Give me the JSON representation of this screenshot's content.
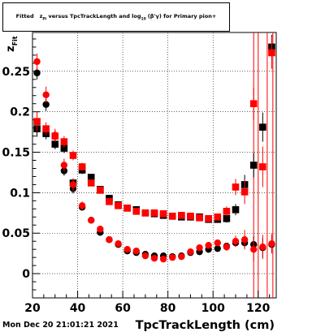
{
  "title": {
    "prefix": "Fitted",
    "var": "z",
    "var_sub": "Pi",
    "middle": " versus TpcTrackLength and log",
    "log_sub": "10",
    "suffix": "(β'γ) for Primary pion+"
  },
  "footer": {
    "timestamp": "Mon Dec 20 21:01:21 2021"
  },
  "chart_data": {
    "type": "scatter",
    "xlabel": "TpcTrackLength (cm)",
    "ylabel": "z",
    "ylabel_sub": "Fit",
    "xlim": [
      20,
      128
    ],
    "ylim": [
      -0.03,
      0.298
    ],
    "x_ticks": [
      20,
      40,
      60,
      80,
      100,
      120
    ],
    "x_tick_labels": [
      "20",
      "40",
      "60",
      "80",
      "100",
      "120"
    ],
    "y_ticks": [
      0,
      0.05,
      0.1,
      0.15,
      0.2,
      0.25
    ],
    "y_tick_labels": [
      "0",
      "0.05",
      "0.1",
      "0.15",
      "0.2",
      "0.25"
    ],
    "grid": true,
    "colors": {
      "black": "#000000",
      "red": "#ff0000"
    },
    "vertical_lines": [
      118,
      120,
      124,
      126.5
    ],
    "series": [
      {
        "color": "#000000",
        "marker": "circle",
        "points": [
          [
            22,
            0.248,
            0.008
          ],
          [
            26,
            0.209,
            0.008
          ],
          [
            30,
            0.16,
            0.006
          ],
          [
            34,
            0.127,
            0.006
          ],
          [
            38,
            0.105,
            0.006
          ],
          [
            42,
            0.082,
            0.004
          ],
          [
            46,
            0.066,
            0.003
          ],
          [
            50,
            0.051,
            0.003
          ],
          [
            54,
            0.042,
            0.002
          ],
          [
            58,
            0.036,
            0.002
          ],
          [
            62,
            0.028,
            0.002
          ],
          [
            66,
            0.026,
            0.002
          ],
          [
            70,
            0.024,
            0.002
          ],
          [
            74,
            0.022,
            0.002
          ],
          [
            78,
            0.022,
            0.002
          ],
          [
            82,
            0.021,
            0.002
          ],
          [
            86,
            0.022,
            0.002
          ],
          [
            90,
            0.026,
            0.002
          ],
          [
            94,
            0.027,
            0.002
          ],
          [
            98,
            0.03,
            0.002
          ],
          [
            102,
            0.031,
            0.002
          ],
          [
            106,
            0.034,
            0.002
          ],
          [
            110,
            0.038,
            0.004
          ],
          [
            114,
            0.038,
            0.006
          ],
          [
            118,
            0.036,
            0.01
          ],
          [
            122,
            0.032,
            0.012
          ],
          [
            126,
            0.036,
            0.01
          ]
        ]
      },
      {
        "color": "#ff0000",
        "marker": "circle",
        "points": [
          [
            22,
            0.262,
            0.01
          ],
          [
            26,
            0.221,
            0.01
          ],
          [
            30,
            0.171,
            0.008
          ],
          [
            34,
            0.134,
            0.008
          ],
          [
            38,
            0.11,
            0.008
          ],
          [
            42,
            0.084,
            0.005
          ],
          [
            46,
            0.066,
            0.004
          ],
          [
            50,
            0.055,
            0.003
          ],
          [
            54,
            0.042,
            0.003
          ],
          [
            58,
            0.037,
            0.003
          ],
          [
            62,
            0.03,
            0.003
          ],
          [
            66,
            0.028,
            0.003
          ],
          [
            70,
            0.022,
            0.003
          ],
          [
            74,
            0.019,
            0.003
          ],
          [
            78,
            0.018,
            0.003
          ],
          [
            82,
            0.02,
            0.003
          ],
          [
            86,
            0.021,
            0.003
          ],
          [
            90,
            0.027,
            0.003
          ],
          [
            94,
            0.032,
            0.003
          ],
          [
            98,
            0.035,
            0.003
          ],
          [
            102,
            0.038,
            0.004
          ],
          [
            106,
            0.033,
            0.005
          ],
          [
            110,
            0.04,
            0.007
          ],
          [
            114,
            0.042,
            0.012
          ],
          [
            118,
            0.03,
            0.015
          ],
          [
            122,
            0.033,
            0.015
          ],
          [
            126,
            0.037,
            0.012
          ]
        ]
      },
      {
        "color": "#000000",
        "marker": "square",
        "points": [
          [
            22,
            0.179,
            0.01
          ],
          [
            26,
            0.173,
            0.007
          ],
          [
            30,
            0.16,
            0.006
          ],
          [
            34,
            0.155,
            0.006
          ],
          [
            38,
            0.112,
            0.005
          ],
          [
            42,
            0.128,
            0.005
          ],
          [
            46,
            0.119,
            0.004
          ],
          [
            50,
            0.104,
            0.003
          ],
          [
            54,
            0.093,
            0.003
          ],
          [
            58,
            0.085,
            0.003
          ],
          [
            62,
            0.081,
            0.003
          ],
          [
            66,
            0.079,
            0.003
          ],
          [
            70,
            0.075,
            0.003
          ],
          [
            74,
            0.074,
            0.003
          ],
          [
            78,
            0.072,
            0.003
          ],
          [
            82,
            0.071,
            0.003
          ],
          [
            86,
            0.07,
            0.003
          ],
          [
            90,
            0.07,
            0.003
          ],
          [
            94,
            0.07,
            0.003
          ],
          [
            98,
            0.067,
            0.003
          ],
          [
            102,
            0.067,
            0.004
          ],
          [
            106,
            0.068,
            0.005
          ],
          [
            110,
            0.079,
            0.007
          ],
          [
            114,
            0.11,
            0.012
          ],
          [
            118,
            0.134,
            0.015
          ],
          [
            122,
            0.181,
            0.018
          ],
          [
            126,
            0.28,
            0.015
          ]
        ]
      },
      {
        "color": "#ff0000",
        "marker": "square",
        "points": [
          [
            22,
            0.188,
            0.012
          ],
          [
            26,
            0.179,
            0.008
          ],
          [
            30,
            0.17,
            0.007
          ],
          [
            34,
            0.163,
            0.007
          ],
          [
            38,
            0.146,
            0.006
          ],
          [
            42,
            0.132,
            0.005
          ],
          [
            46,
            0.112,
            0.004
          ],
          [
            50,
            0.103,
            0.003
          ],
          [
            54,
            0.089,
            0.003
          ],
          [
            58,
            0.084,
            0.003
          ],
          [
            62,
            0.081,
            0.003
          ],
          [
            66,
            0.077,
            0.003
          ],
          [
            70,
            0.075,
            0.003
          ],
          [
            74,
            0.075,
            0.003
          ],
          [
            78,
            0.074,
            0.003
          ],
          [
            82,
            0.071,
            0.003
          ],
          [
            86,
            0.072,
            0.003
          ],
          [
            90,
            0.071,
            0.003
          ],
          [
            94,
            0.069,
            0.003
          ],
          [
            98,
            0.068,
            0.003
          ],
          [
            102,
            0.07,
            0.004
          ],
          [
            106,
            0.077,
            0.006
          ],
          [
            110,
            0.107,
            0.01
          ],
          [
            114,
            0.101,
            0.015
          ],
          [
            118,
            0.21,
            0.02
          ],
          [
            122,
            0.132,
            0.025
          ],
          [
            126,
            0.273,
            0.02
          ]
        ]
      }
    ]
  }
}
